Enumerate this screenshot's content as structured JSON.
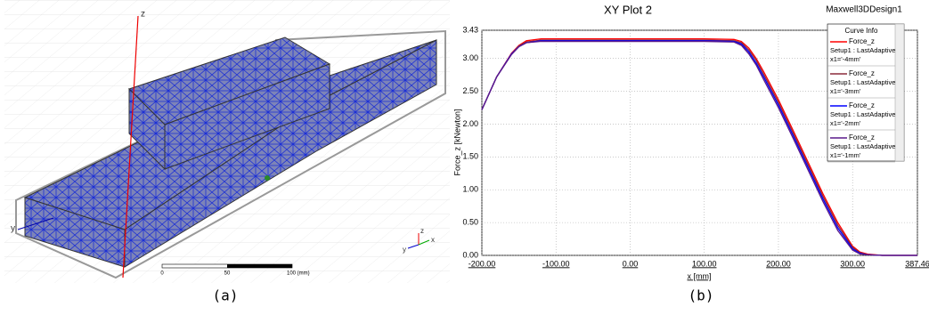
{
  "panel_a": {
    "axis_z": "z",
    "axis_y": "y",
    "triad": [
      "y",
      "z",
      "x"
    ],
    "scale_ticks": [
      "0",
      "50",
      "100 (mm)"
    ],
    "caption": "(a)"
  },
  "chart_data": {
    "type": "line",
    "title": "XY Plot 2",
    "design": "Maxwell3DDesign1",
    "caption": "(b)",
    "x_label": "x [mm]",
    "y_label": "Force_z [kNewton]",
    "legend_title": "Curve Info",
    "grid": true,
    "xlim": [
      -200,
      387.46
    ],
    "ylim": [
      0,
      3.43
    ],
    "xticks": [
      {
        "value": -200,
        "label": "-200.00"
      },
      {
        "value": -100,
        "label": "-100.00"
      },
      {
        "value": 0,
        "label": "0.00"
      },
      {
        "value": 100,
        "label": "100.00"
      },
      {
        "value": 200,
        "label": "200.00"
      },
      {
        "value": 300,
        "label": "300.00"
      },
      {
        "value": 387.46,
        "label": "387.46"
      }
    ],
    "yticks": [
      {
        "value": 0,
        "label": "0.00"
      },
      {
        "value": 0.5,
        "label": "0.50"
      },
      {
        "value": 1,
        "label": "1.00"
      },
      {
        "value": 1.5,
        "label": "1.50"
      },
      {
        "value": 2,
        "label": "2.00"
      },
      {
        "value": 2.5,
        "label": "2.50"
      },
      {
        "value": 3,
        "label": "3.00"
      },
      {
        "value": 3.43,
        "label": "3.43"
      }
    ],
    "x": [
      -200,
      -180,
      -160,
      -150,
      -140,
      -120,
      -100,
      -50,
      0,
      50,
      100,
      140,
      150,
      160,
      170,
      180,
      200,
      220,
      240,
      260,
      280,
      300,
      310,
      320,
      340,
      387.46
    ],
    "series": [
      {
        "name": "Force_z",
        "setup": "Setup1 : LastAdaptive",
        "variation": "x1='-4mm'",
        "color": "#ff0000",
        "values": [
          2.22,
          2.72,
          3.08,
          3.2,
          3.27,
          3.3,
          3.3,
          3.3,
          3.3,
          3.3,
          3.3,
          3.29,
          3.26,
          3.16,
          3.0,
          2.8,
          2.37,
          1.9,
          1.42,
          0.94,
          0.5,
          0.14,
          0.05,
          0.02,
          0,
          0
        ]
      },
      {
        "name": "Force_z",
        "setup": "Setup1 : LastAdaptive",
        "variation": "x1='-3mm'",
        "color": "#8b2c3c",
        "values": [
          2.22,
          2.72,
          3.07,
          3.19,
          3.25,
          3.28,
          3.28,
          3.28,
          3.28,
          3.28,
          3.28,
          3.27,
          3.24,
          3.13,
          2.97,
          2.76,
          2.33,
          1.86,
          1.38,
          0.9,
          0.46,
          0.12,
          0.04,
          0.01,
          0,
          0
        ]
      },
      {
        "name": "Force_z",
        "setup": "Setup1 : LastAdaptive",
        "variation": "x1='-2mm'",
        "color": "#0000ff",
        "values": [
          2.22,
          2.72,
          3.07,
          3.18,
          3.24,
          3.27,
          3.27,
          3.27,
          3.27,
          3.27,
          3.27,
          3.26,
          3.22,
          3.1,
          2.93,
          2.72,
          2.29,
          1.82,
          1.34,
          0.86,
          0.42,
          0.1,
          0.03,
          0.01,
          0,
          0
        ]
      },
      {
        "name": "Force_z",
        "setup": "Setup1 : LastAdaptive",
        "variation": "x1='-1mm'",
        "color": "#5a1a8a",
        "values": [
          2.22,
          2.72,
          3.06,
          3.18,
          3.24,
          3.26,
          3.26,
          3.26,
          3.26,
          3.26,
          3.26,
          3.25,
          3.2,
          3.07,
          2.9,
          2.68,
          2.25,
          1.78,
          1.3,
          0.82,
          0.38,
          0.08,
          0.02,
          0.01,
          0,
          0
        ]
      }
    ]
  }
}
